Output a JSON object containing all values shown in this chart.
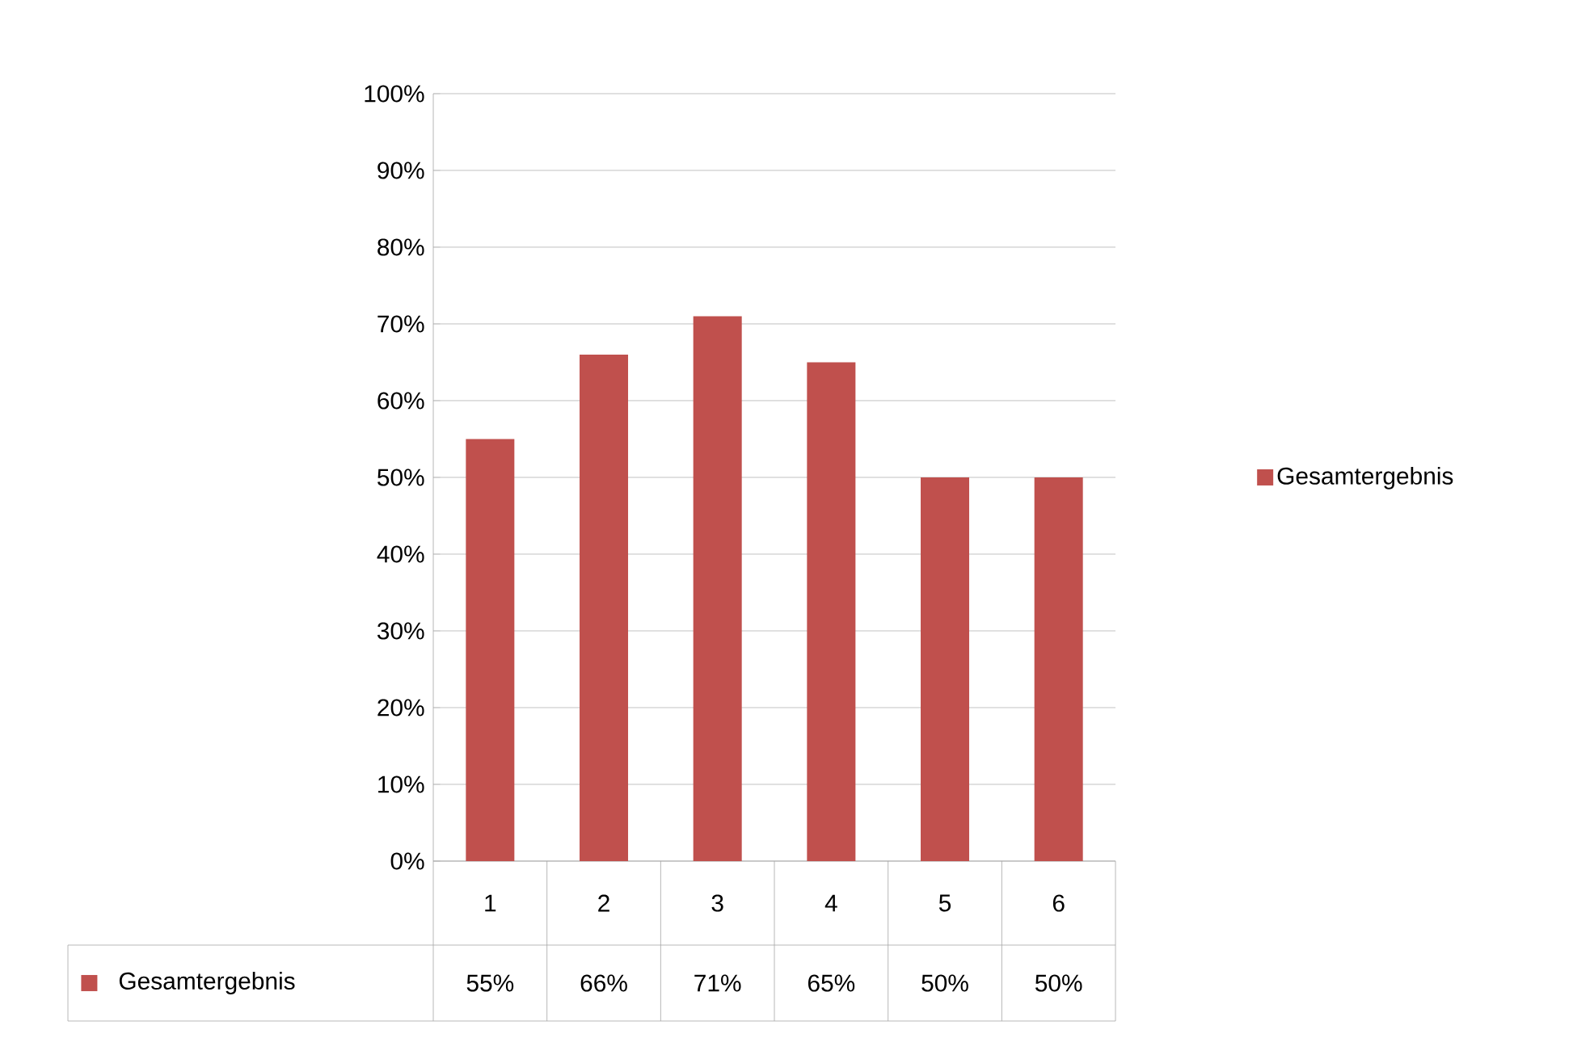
{
  "chart_data": {
    "type": "bar",
    "categories": [
      "1",
      "2",
      "3",
      "4",
      "5",
      "6"
    ],
    "series": [
      {
        "name": "Gesamtergebnis",
        "color": "#c0504d",
        "values": [
          55,
          66,
          71,
          65,
          50,
          50
        ],
        "value_labels": [
          "55%",
          "66%",
          "71%",
          "65%",
          "50%",
          "50%"
        ]
      }
    ],
    "ylim": [
      0,
      100
    ],
    "yticks": [
      {
        "value": 0,
        "label": "0%"
      },
      {
        "value": 10,
        "label": "10%"
      },
      {
        "value": 20,
        "label": "20%"
      },
      {
        "value": 30,
        "label": "30%"
      },
      {
        "value": 40,
        "label": "40%"
      },
      {
        "value": 50,
        "label": "50%"
      },
      {
        "value": 60,
        "label": "60%"
      },
      {
        "value": 70,
        "label": "70%"
      },
      {
        "value": 80,
        "label": "80%"
      },
      {
        "value": 90,
        "label": "90%"
      },
      {
        "value": 100,
        "label": "100%"
      }
    ],
    "grid": "y",
    "legend": "right"
  }
}
